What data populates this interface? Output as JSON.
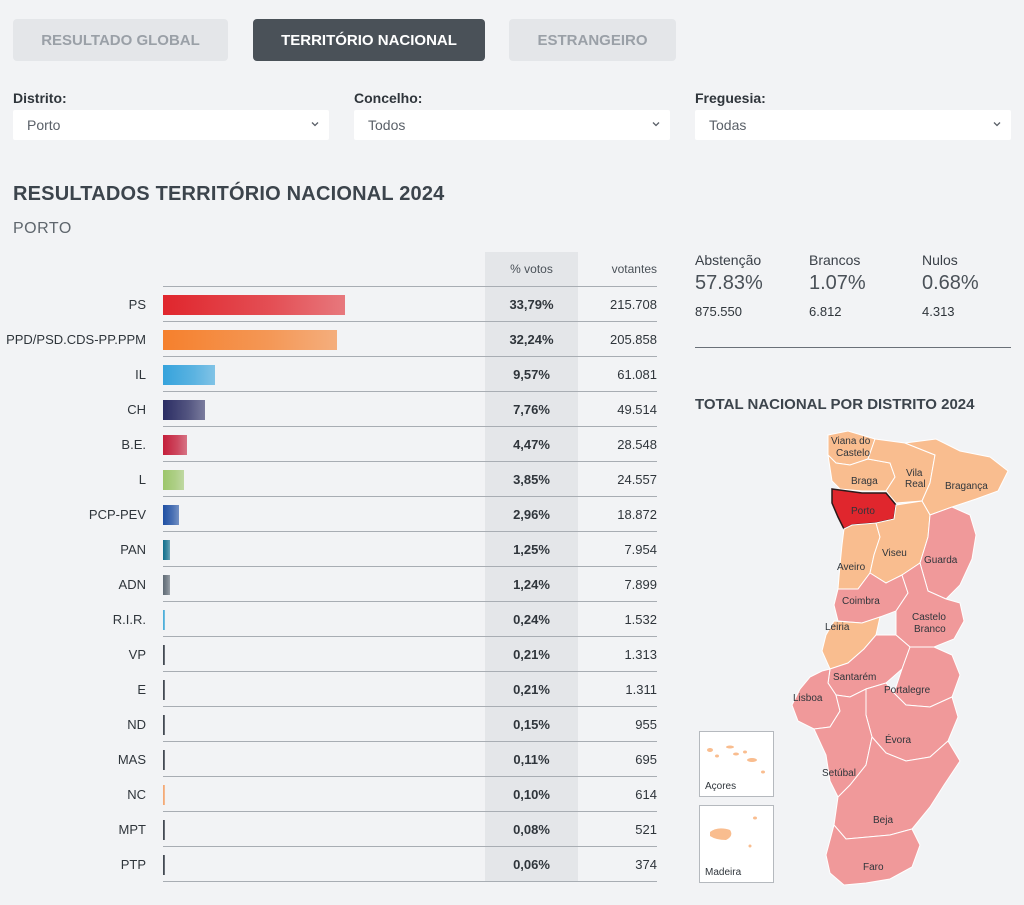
{
  "tabs": [
    {
      "label": "RESULTADO GLOBAL"
    },
    {
      "label": "TERRITÓRIO NACIONAL"
    },
    {
      "label": "ESTRANGEIRO"
    }
  ],
  "filters": {
    "distrito": {
      "label": "Distrito:",
      "value": "Porto"
    },
    "concelho": {
      "label": "Concelho:",
      "value": "Todos"
    },
    "freguesia": {
      "label": "Freguesia:",
      "value": "Todas"
    }
  },
  "title": "RESULTADOS TERRITÓRIO NACIONAL 2024",
  "subtitle": "PORTO",
  "table": {
    "headers": {
      "pct": "% votos",
      "votes": "votantes"
    },
    "rows": [
      {
        "party": "PS",
        "pct": "33,79%",
        "votes": "215.708",
        "share": 33.79,
        "color": "#e0262d"
      },
      {
        "party": "PPD/PSD.CDS-PP.PPM",
        "pct": "32,24%",
        "votes": "205.858",
        "share": 32.24,
        "color": "#f5802d"
      },
      {
        "party": "IL",
        "pct": "9,57%",
        "votes": "61.081",
        "share": 9.57,
        "color": "#36a3dc"
      },
      {
        "party": "CH",
        "pct": "7,76%",
        "votes": "49.514",
        "share": 7.76,
        "color": "#2b2d63"
      },
      {
        "party": "B.E.",
        "pct": "4,47%",
        "votes": "28.548",
        "share": 4.47,
        "color": "#c41e3a"
      },
      {
        "party": "L",
        "pct": "3,85%",
        "votes": "24.557",
        "share": 3.85,
        "color": "#9dc66b"
      },
      {
        "party": "PCP-PEV",
        "pct": "2,96%",
        "votes": "18.872",
        "share": 2.96,
        "color": "#1f4fa3"
      },
      {
        "party": "PAN",
        "pct": "1,25%",
        "votes": "7.954",
        "share": 1.25,
        "color": "#0f6e8c"
      },
      {
        "party": "ADN",
        "pct": "1,24%",
        "votes": "7.899",
        "share": 1.24,
        "color": "#5f6a75"
      },
      {
        "party": "R.I.R.",
        "pct": "0,24%",
        "votes": "1.532",
        "share": 0.24,
        "color": "#3fa9d8"
      },
      {
        "party": "VP",
        "pct": "0,21%",
        "votes": "1.313",
        "share": 0.21,
        "color": "#333a44"
      },
      {
        "party": "E",
        "pct": "0,21%",
        "votes": "1.311",
        "share": 0.21,
        "color": "#333a44"
      },
      {
        "party": "ND",
        "pct": "0,15%",
        "votes": "955",
        "share": 0.15,
        "color": "#333a44"
      },
      {
        "party": "MAS",
        "pct": "0,11%",
        "votes": "695",
        "share": 0.11,
        "color": "#333a44"
      },
      {
        "party": "NC",
        "pct": "0,10%",
        "votes": "614",
        "share": 0.1,
        "color": "#f5a36a"
      },
      {
        "party": "MPT",
        "pct": "0,08%",
        "votes": "521",
        "share": 0.08,
        "color": "#333a44"
      },
      {
        "party": "PTP",
        "pct": "0,06%",
        "votes": "374",
        "share": 0.06,
        "color": "#333a44"
      }
    ]
  },
  "stats": {
    "abstencao": {
      "label": "Abstenção",
      "pct": "57.83%",
      "num": "875.550"
    },
    "brancos": {
      "label": "Brancos",
      "pct": "1.07%",
      "num": "6.812"
    },
    "nulos": {
      "label": "Nulos",
      "pct": "0.68%",
      "num": "4.313"
    }
  },
  "map": {
    "title": "TOTAL NACIONAL POR DISTRITO 2024",
    "colors": {
      "ps": "#f0999a",
      "psd": "#f9bd8f",
      "selected": "#e0262d"
    },
    "regions": {
      "viana_1": "Viana do",
      "viana_2": "Castelo",
      "braga": "Braga",
      "vila_real_1": "Vila",
      "vila_real_2": "Real",
      "braganca": "Bragança",
      "porto": "Porto",
      "viseu": "Viseu",
      "aveiro": "Aveiro",
      "guarda": "Guarda",
      "coimbra": "Coimbra",
      "castelo_branco_1": "Castelo",
      "castelo_branco_2": "Branco",
      "leiria": "Leiria",
      "santarem": "Santarém",
      "portalegre": "Portalegre",
      "lisboa": "Lisboa",
      "evora": "Évora",
      "setubal": "Setúbal",
      "beja": "Beja",
      "faro": "Faro"
    },
    "insets": {
      "acores": "Açores",
      "madeira": "Madeira"
    }
  }
}
